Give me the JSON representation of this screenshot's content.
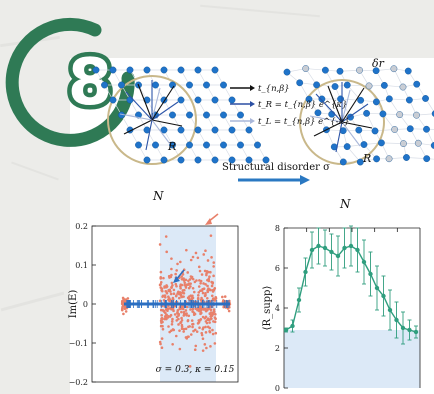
{
  "badge": {
    "number": "8",
    "color": "#2f7a55"
  },
  "schematic": {
    "left_label": "N",
    "right_label": "N",
    "radius_label": "R",
    "right_radius_label": "R",
    "delta_r_label": "δr",
    "arrow_text": "Structural disorder σ",
    "legend": [
      {
        "text": "t_{n,β}",
        "color": "#111111"
      },
      {
        "text": "t_R = t_{n,β} e^{κ}",
        "color": "#2b4fa3"
      },
      {
        "text": "t_L = t_{n,β} e^{-κ}",
        "color": "#a9b7d9"
      }
    ],
    "colors": {
      "site": "#1f73c9",
      "ring": "#c9b88a",
      "vector": "#2d55a8"
    }
  },
  "chart_data": [
    {
      "type": "scatter",
      "title": "",
      "xlabel": "",
      "ylabel": "Im(E)",
      "ylim": [
        -0.2,
        0.2
      ],
      "yticks": [
        "0.2",
        "0.1",
        "0",
        "−0.1",
        "−0.2"
      ],
      "annotation": "σ = 0.3, κ = 0.15",
      "shaded_region_color": "#dce9f7",
      "series": [
        {
          "color": "#e8806a"
        },
        {
          "color": "#2b6fc2"
        }
      ]
    },
    {
      "type": "line",
      "title": "",
      "xlabel": "",
      "ylabel": "⟨R_supp⟩",
      "ylim": [
        0,
        8
      ],
      "yticks": [
        "8",
        "6",
        "4",
        "2",
        "0"
      ],
      "line_color": "#2f9e7e",
      "shaded_region_color": "#dce9f7",
      "shaded_level": 2.9,
      "values": [
        2.9,
        3.1,
        4.4,
        5.8,
        6.9,
        7.1,
        7.0,
        6.8,
        6.6,
        7.0,
        7.1,
        6.9,
        6.3,
        5.7,
        5.0,
        4.6,
        3.9,
        3.4,
        3.0,
        2.9,
        2.8
      ],
      "errors": [
        0.1,
        0.3,
        0.6,
        0.7,
        0.9,
        0.9,
        0.9,
        0.9,
        1.0,
        1.0,
        1.0,
        1.1,
        1.1,
        1.1,
        1.1,
        1.0,
        1.0,
        0.9,
        0.8,
        0.5,
        0.3
      ]
    }
  ]
}
